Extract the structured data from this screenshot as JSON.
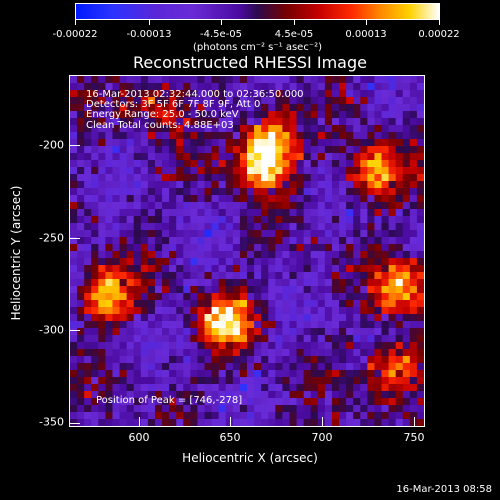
{
  "colorbar": {
    "tick_labels": [
      "-0.00022",
      "-0.00013",
      "-4.5e-05",
      "4.5e-05",
      "0.00013",
      "0.00022"
    ],
    "tick_values": [
      -0.00022,
      -0.00013,
      -4.5e-05,
      4.5e-05,
      0.00013,
      0.00022
    ],
    "unit_label": "(photons cm⁻² s⁻¹ asec⁻²)",
    "min": -0.00022,
    "max": 0.00022
  },
  "title": "Reconstructed RHESSI Image",
  "info_lines": [
    "16-Mar-2013 02:32:44.000 to 02:36:50.000",
    "Detectors: 3F 5F 6F 7F 8F 9F, Att 0",
    "Energy Range: 25.0 - 50.0 keV",
    "Clean    Total counts: 4.88E+03"
  ],
  "peak_text": "Position of Peak = [746,-278]",
  "timestamp": "16-Mar-2013 08:58",
  "chart_data": {
    "type": "heatmap",
    "title": "Reconstructed RHESSI Image",
    "xlabel": "Heliocentric X (arcsec)",
    "ylabel": "Heliocentric Y (arcsec)",
    "x_ticks": [
      600,
      650,
      700,
      750
    ],
    "y_ticks": [
      -200,
      -250,
      -300,
      -350
    ],
    "xlim": [
      563,
      757
    ],
    "ylim": [
      -353,
      -163
    ],
    "peak": [
      746,
      -278
    ],
    "bright_regions": [
      {
        "x": 673,
        "y": -197,
        "value": 0.00022
      },
      {
        "x": 667,
        "y": -212,
        "value": 0.00022
      },
      {
        "x": 730,
        "y": -215,
        "value": 0.00022
      },
      {
        "x": 746,
        "y": -278,
        "value": 0.00022
      },
      {
        "x": 650,
        "y": -297,
        "value": 0.00022
      },
      {
        "x": 583,
        "y": -282,
        "value": 0.00022
      },
      {
        "x": 740,
        "y": -323,
        "value": 0.00022
      },
      {
        "x": 612,
        "y": -178,
        "value": 0.00013
      }
    ]
  }
}
